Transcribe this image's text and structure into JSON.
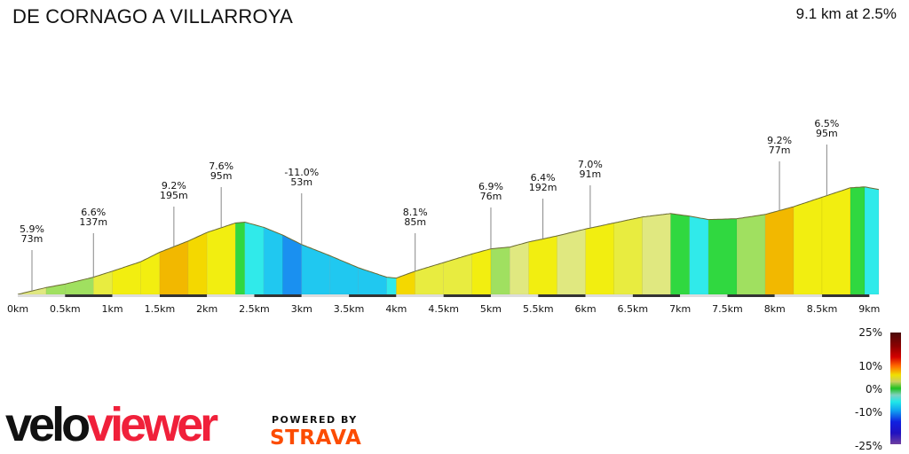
{
  "header": {
    "title": "DE CORNAGO A VILLARROYA",
    "summary": "9.1 km at 2.5%"
  },
  "legend": {
    "labels": [
      "25%",
      "10%",
      "0%",
      "-10%",
      "-25%"
    ]
  },
  "branding": {
    "logo_part1": "velo",
    "logo_part2": "viewer",
    "powered_by": "POWERED BY",
    "strava": "STRAVA"
  },
  "chart_data": {
    "type": "area",
    "title": "DE CORNAGO A VILLARROYA",
    "subtitle": "9.1 km at 2.5%",
    "xlabel": "Distance",
    "ylabel": "Elevation",
    "x_ticks": [
      "0km",
      "0.5km",
      "1km",
      "1.5km",
      "2km",
      "2.5km",
      "3km",
      "3.5km",
      "4km",
      "4.5km",
      "5km",
      "5.5km",
      "6km",
      "6.5km",
      "7km",
      "7.5km",
      "8km",
      "8.5km",
      "9km"
    ],
    "xlim": [
      0,
      9.1
    ],
    "profile": [
      [
        0.0,
        0
      ],
      [
        0.3,
        8
      ],
      [
        0.5,
        12
      ],
      [
        0.8,
        20
      ],
      [
        1.0,
        27
      ],
      [
        1.3,
        38
      ],
      [
        1.5,
        49
      ],
      [
        1.8,
        62
      ],
      [
        2.0,
        72
      ],
      [
        2.3,
        83
      ],
      [
        2.4,
        84
      ],
      [
        2.6,
        78
      ],
      [
        2.8,
        69
      ],
      [
        3.0,
        58
      ],
      [
        3.3,
        45
      ],
      [
        3.6,
        31
      ],
      [
        3.9,
        20
      ],
      [
        4.0,
        19
      ],
      [
        4.2,
        27
      ],
      [
        4.5,
        37
      ],
      [
        4.8,
        47
      ],
      [
        5.0,
        53
      ],
      [
        5.2,
        55
      ],
      [
        5.4,
        61
      ],
      [
        5.7,
        68
      ],
      [
        6.0,
        76
      ],
      [
        6.3,
        83
      ],
      [
        6.6,
        90
      ],
      [
        6.9,
        94
      ],
      [
        7.1,
        91
      ],
      [
        7.3,
        87
      ],
      [
        7.6,
        88
      ],
      [
        7.9,
        93
      ],
      [
        8.2,
        102
      ],
      [
        8.5,
        113
      ],
      [
        8.8,
        124
      ],
      [
        8.95,
        125
      ],
      [
        9.1,
        122
      ]
    ],
    "segments_grade_pct": [
      [
        0.0,
        0.3,
        3
      ],
      [
        0.3,
        0.5,
        1
      ],
      [
        0.5,
        0.8,
        2
      ],
      [
        0.8,
        1.0,
        4
      ],
      [
        1.0,
        1.3,
        6
      ],
      [
        1.3,
        1.5,
        7
      ],
      [
        1.5,
        1.8,
        9.2
      ],
      [
        1.8,
        2.0,
        7.6
      ],
      [
        2.0,
        2.3,
        6
      ],
      [
        2.3,
        2.4,
        0
      ],
      [
        2.4,
        2.6,
        -5
      ],
      [
        2.6,
        2.8,
        -7
      ],
      [
        2.8,
        3.0,
        -11
      ],
      [
        3.0,
        3.3,
        -6
      ],
      [
        3.3,
        3.6,
        -9
      ],
      [
        3.6,
        3.9,
        -6
      ],
      [
        3.9,
        4.0,
        -2
      ],
      [
        4.0,
        4.2,
        8.1
      ],
      [
        4.2,
        4.5,
        5
      ],
      [
        4.5,
        4.8,
        4
      ],
      [
        4.8,
        5.0,
        6.9
      ],
      [
        5.0,
        5.2,
        1
      ],
      [
        5.2,
        5.4,
        3
      ],
      [
        5.4,
        5.7,
        6.4
      ],
      [
        5.7,
        6.0,
        3
      ],
      [
        6.0,
        6.3,
        7.0
      ],
      [
        6.3,
        6.6,
        4
      ],
      [
        6.6,
        6.9,
        3
      ],
      [
        6.9,
        7.1,
        0
      ],
      [
        7.1,
        7.3,
        -3
      ],
      [
        7.3,
        7.6,
        0
      ],
      [
        7.6,
        7.9,
        2
      ],
      [
        7.9,
        8.2,
        9.2
      ],
      [
        8.2,
        8.5,
        6
      ],
      [
        8.5,
        8.8,
        6.5
      ],
      [
        8.8,
        8.95,
        0
      ],
      [
        8.95,
        9.1,
        -3
      ]
    ],
    "annotations": [
      {
        "km": 0.15,
        "grade": "5.9%",
        "length": "73m"
      },
      {
        "km": 0.8,
        "grade": "6.6%",
        "length": "137m"
      },
      {
        "km": 1.65,
        "grade": "9.2%",
        "length": "195m"
      },
      {
        "km": 2.15,
        "grade": "7.6%",
        "length": "95m"
      },
      {
        "km": 3.0,
        "grade": "-11.0%",
        "length": "53m"
      },
      {
        "km": 4.2,
        "grade": "8.1%",
        "length": "85m"
      },
      {
        "km": 5.0,
        "grade": "6.9%",
        "length": "76m"
      },
      {
        "km": 5.55,
        "grade": "6.4%",
        "length": "192m"
      },
      {
        "km": 6.05,
        "grade": "7.0%",
        "length": "91m"
      },
      {
        "km": 8.05,
        "grade": "9.2%",
        "length": "77m"
      },
      {
        "km": 8.55,
        "grade": "6.5%",
        "length": "95m"
      }
    ],
    "color_scale": {
      "min": -25,
      "max": 25,
      "ticks": [
        25,
        10,
        0,
        -10,
        -25
      ]
    },
    "grid": false,
    "legend_position": "bottom-right"
  }
}
